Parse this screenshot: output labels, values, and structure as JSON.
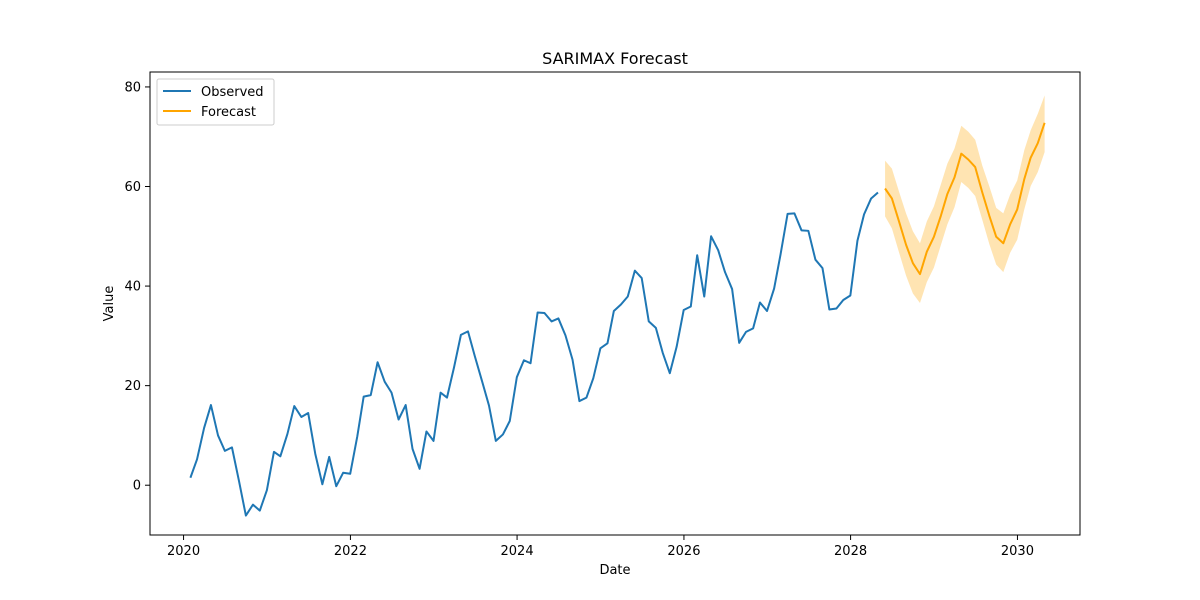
{
  "chart_data": {
    "type": "line",
    "title": "SARIMAX Forecast",
    "xlabel": "Date",
    "ylabel": "Value",
    "xlim": [
      "2019-08-07",
      "2030-10-02"
    ],
    "ylim": [
      -10,
      83
    ],
    "x_ticks": [
      "2020",
      "2022",
      "2024",
      "2026",
      "2028",
      "2030"
    ],
    "y_ticks": [
      0,
      20,
      40,
      60,
      80
    ],
    "grid": false,
    "legend": "upper left",
    "observed": {
      "name": "Observed",
      "color": "#1f77b4",
      "x": [
        "2020-01-31",
        "2020-02-29",
        "2020-03-31",
        "2020-04-30",
        "2020-05-31",
        "2020-06-30",
        "2020-07-31",
        "2020-08-31",
        "2020-09-30",
        "2020-10-31",
        "2020-11-30",
        "2020-12-31",
        "2021-01-31",
        "2021-02-28",
        "2021-03-31",
        "2021-04-30",
        "2021-05-31",
        "2021-06-30",
        "2021-07-31",
        "2021-08-31",
        "2021-09-30",
        "2021-10-31",
        "2021-11-30",
        "2021-12-31",
        "2022-01-31",
        "2022-02-28",
        "2022-03-31",
        "2022-04-30",
        "2022-05-31",
        "2022-06-30",
        "2022-07-31",
        "2022-08-31",
        "2022-09-30",
        "2022-10-31",
        "2022-11-30",
        "2022-12-31",
        "2023-01-31",
        "2023-02-28",
        "2023-03-31",
        "2023-04-30",
        "2023-05-31",
        "2023-06-30",
        "2023-07-31",
        "2023-08-31",
        "2023-09-30",
        "2023-10-31",
        "2023-11-30",
        "2023-12-31",
        "2024-01-31",
        "2024-02-29",
        "2024-03-31",
        "2024-04-30",
        "2024-05-31",
        "2024-06-30",
        "2024-07-31",
        "2024-08-31",
        "2024-09-30",
        "2024-10-31",
        "2024-11-30",
        "2024-12-31",
        "2025-01-31",
        "2025-02-28",
        "2025-03-31",
        "2025-04-30",
        "2025-05-31",
        "2025-06-30",
        "2025-07-31",
        "2025-08-31",
        "2025-09-30",
        "2025-10-31",
        "2025-11-30",
        "2025-12-31",
        "2026-01-31",
        "2026-02-28",
        "2026-03-31",
        "2026-04-30",
        "2026-05-31",
        "2026-06-30",
        "2026-07-31",
        "2026-08-31",
        "2026-09-30",
        "2026-10-31",
        "2026-11-30",
        "2026-12-31",
        "2027-01-31",
        "2027-02-28",
        "2027-03-31",
        "2027-04-30",
        "2027-05-31",
        "2027-06-30",
        "2027-07-31",
        "2027-08-31",
        "2027-09-30",
        "2027-10-31",
        "2027-11-30",
        "2027-12-31",
        "2028-01-31",
        "2028-02-29",
        "2028-03-31",
        "2028-04-30"
      ],
      "y": [
        1.5,
        5.2,
        11.5,
        16.1,
        10.0,
        6.9,
        7.6,
        0.8,
        -6.1,
        -3.9,
        -5.1,
        -1.0,
        6.7,
        5.8,
        10.3,
        15.9,
        13.7,
        14.5,
        6.3,
        0.2,
        5.7,
        -0.2,
        2.5,
        2.3,
        9.8,
        17.8,
        18.1,
        24.7,
        20.8,
        18.6,
        13.2,
        16.1,
        7.3,
        3.3,
        10.8,
        8.9,
        18.6,
        17.6,
        23.7,
        30.2,
        30.9,
        25.9,
        21.0,
        16.0,
        8.9,
        10.2,
        12.9,
        21.7,
        25.1,
        24.5,
        34.7,
        34.6,
        32.9,
        33.5,
        30.1,
        25.2,
        16.9,
        17.6,
        21.5,
        27.5,
        28.5,
        35.0,
        36.3,
        37.9,
        43.1,
        41.6,
        32.9,
        31.6,
        26.6,
        22.5,
        27.8,
        35.2,
        35.9,
        46.2,
        37.9,
        50.0,
        47.2,
        42.8,
        39.4,
        28.6,
        30.8,
        31.5,
        36.7,
        35.0,
        39.5,
        46.3,
        54.5,
        54.6,
        51.2,
        51.1,
        45.3,
        43.6,
        35.3,
        35.5,
        37.2,
        38.1,
        49.1,
        54.4,
        57.6,
        58.8
      ]
    },
    "forecast": {
      "name": "Forecast",
      "color": "#ffa500",
      "x": [
        "2028-05-31",
        "2028-06-30",
        "2028-07-31",
        "2028-08-31",
        "2028-09-30",
        "2028-10-31",
        "2028-11-30",
        "2028-12-31",
        "2029-01-31",
        "2029-02-28",
        "2029-03-31",
        "2029-04-30",
        "2029-05-31",
        "2029-06-30",
        "2029-07-31",
        "2029-08-31",
        "2029-09-30",
        "2029-10-31",
        "2029-11-30",
        "2029-12-31",
        "2030-01-31",
        "2030-02-28",
        "2030-03-31",
        "2030-04-30"
      ],
      "y": [
        59.6,
        57.6,
        53.0,
        48.3,
        44.6,
        42.4,
        46.9,
        49.9,
        54.2,
        58.5,
        61.8,
        66.6,
        65.4,
        63.9,
        58.8,
        54.1,
        49.9,
        48.6,
        52.4,
        55.4,
        61.5,
        65.8,
        68.7,
        72.8
      ],
      "upper": [
        65.2,
        63.6,
        59.0,
        54.6,
        51.0,
        48.6,
        53.0,
        56.0,
        60.5,
        64.6,
        67.6,
        72.2,
        71.0,
        69.4,
        64.2,
        60.0,
        55.7,
        54.6,
        58.4,
        61.2,
        67.3,
        71.3,
        74.6,
        78.3
      ],
      "lower": [
        54.0,
        51.6,
        46.8,
        42.1,
        38.5,
        36.6,
        40.8,
        43.7,
        48.3,
        52.4,
        55.8,
        60.9,
        59.7,
        58.1,
        53.3,
        48.4,
        44.3,
        42.8,
        46.7,
        49.3,
        55.4,
        60.1,
        62.9,
        66.9
      ],
      "band_color": "#ffa500",
      "band_opacity": 0.3
    }
  }
}
